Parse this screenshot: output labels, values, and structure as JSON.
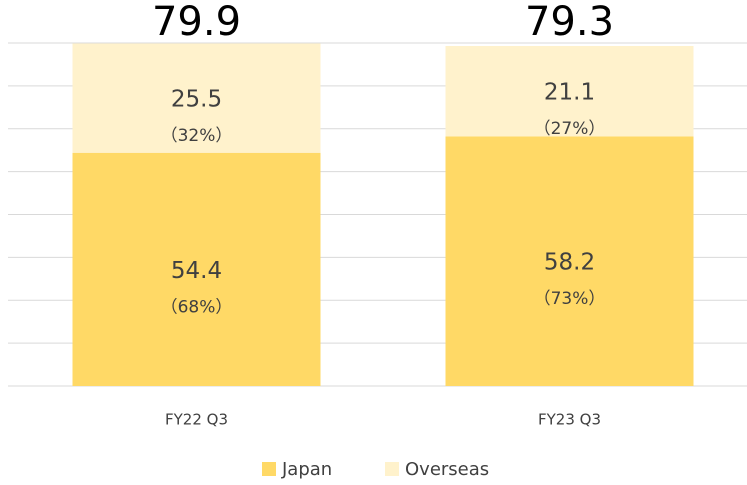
{
  "chart_data": {
    "type": "stacked_bar",
    "categories": [
      "FY22 Q3",
      "FY23 Q3"
    ],
    "series": [
      {
        "name": "Japan",
        "color": "#ffd966",
        "values": [
          54.4,
          58.2
        ],
        "percent_labels": [
          "（68%）",
          "（73%）"
        ]
      },
      {
        "name": "Overseas",
        "color": "#fff2cc",
        "values": [
          25.5,
          21.1
        ],
        "percent_labels": [
          "（32%）",
          "（27%）"
        ]
      }
    ],
    "totals": [
      79.9,
      79.3
    ],
    "ylim": [
      0,
      80
    ],
    "yticks": [
      0,
      10,
      20,
      30,
      40,
      50,
      60,
      70,
      80
    ],
    "grid": true
  }
}
